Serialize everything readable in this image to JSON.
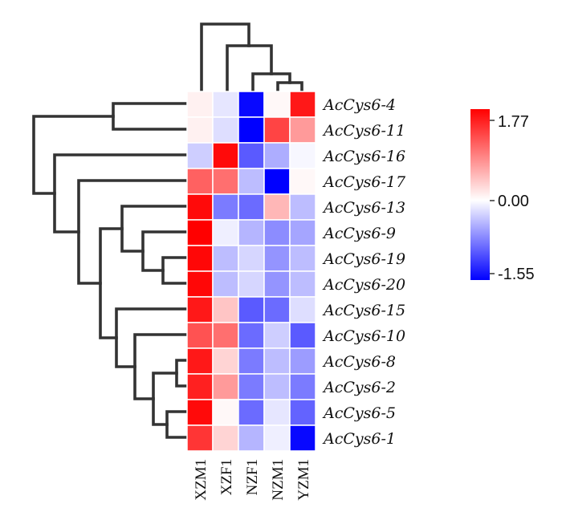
{
  "chart_data": {
    "type": "heatmap",
    "rows": [
      "AcCys6-4",
      "AcCys6-11",
      "AcCys6-16",
      "AcCys6-17",
      "AcCys6-13",
      "AcCys6-9",
      "AcCys6-19",
      "AcCys6-20",
      "AcCys6-15",
      "AcCys6-10",
      "AcCys6-8",
      "AcCys6-2",
      "AcCys6-5",
      "AcCys6-1"
    ],
    "columns": [
      "XZM1",
      "XZF1",
      "NZF1",
      "NZM1",
      "YZM1"
    ],
    "values": [
      [
        0.1,
        -0.15,
        -1.5,
        0.05,
        1.6
      ],
      [
        0.1,
        -0.2,
        -1.55,
        1.3,
        0.7
      ],
      [
        -0.3,
        1.7,
        -1.0,
        -0.5,
        -0.05
      ],
      [
        1.1,
        1.0,
        -0.4,
        -1.55,
        0.05
      ],
      [
        1.7,
        -0.8,
        -0.9,
        0.5,
        -0.4
      ],
      [
        1.77,
        -0.1,
        -0.45,
        -0.7,
        -0.55
      ],
      [
        1.72,
        -0.4,
        -0.25,
        -0.65,
        -0.4
      ],
      [
        1.72,
        -0.4,
        -0.25,
        -0.65,
        -0.4
      ],
      [
        1.6,
        0.4,
        -1.0,
        -0.9,
        -0.2
      ],
      [
        1.2,
        1.0,
        -0.9,
        -0.3,
        -1.0
      ],
      [
        1.6,
        0.3,
        -0.8,
        -0.4,
        -0.6
      ],
      [
        1.55,
        0.7,
        -0.8,
        -0.4,
        -0.8
      ],
      [
        1.7,
        0.05,
        -0.9,
        -0.15,
        -0.95
      ],
      [
        1.4,
        0.3,
        -0.45,
        -0.1,
        -1.5
      ]
    ],
    "legend": {
      "max": 1.77,
      "mid": 0.0,
      "min": -1.55,
      "max_label": "1.77",
      "mid_label": "0.00",
      "min_label": "-1.55"
    },
    "colors": {
      "high": "#ff0000",
      "mid": "#ffffff",
      "low": "#0000ff"
    }
  }
}
